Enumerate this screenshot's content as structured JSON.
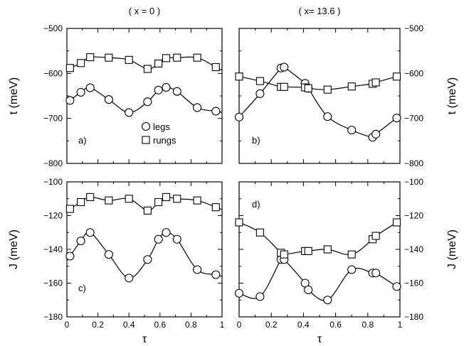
{
  "chart_data": {
    "type": "scatter",
    "column_titles": [
      "( x = 0 )",
      "( x= 13.6 )"
    ],
    "legend": {
      "legs": "legs",
      "rungs": "rungs"
    },
    "x_axis_label": "τ",
    "x_ticks": [
      "0",
      "0.2",
      "0.4",
      "0.6",
      "0.8",
      "1"
    ],
    "xlim": [
      0,
      1
    ],
    "rows": [
      {
        "ylabel": "t  (meV)",
        "ylim": [
          -800,
          -500
        ],
        "y_ticks": [
          {
            "v": -500,
            "label": "-500"
          },
          {
            "v": -600,
            "label": "-600"
          },
          {
            "v": -700,
            "label": "-700"
          },
          {
            "v": -800,
            "label": "-800"
          }
        ]
      },
      {
        "ylabel": "J  (meV)",
        "ylim": [
          -180,
          -100
        ],
        "y_ticks": [
          {
            "v": -100,
            "label": "-100"
          },
          {
            "v": -120,
            "label": "-120"
          },
          {
            "v": -140,
            "label": "-140"
          },
          {
            "v": -160,
            "label": "-160"
          },
          {
            "v": -180,
            "label": "-180"
          }
        ]
      }
    ],
    "panels": [
      {
        "label": "a)",
        "row": 0,
        "col": 0,
        "series": [
          {
            "name": "legs",
            "marker": "circle",
            "x": [
              0.02,
              0.09,
              0.15,
              0.27,
              0.4,
              0.52,
              0.59,
              0.64,
              0.71,
              0.84,
              0.96
            ],
            "y": [
              -660,
              -642,
              -632,
              -658,
              -687,
              -663,
              -637,
              -631,
              -640,
              -676,
              -684
            ]
          },
          {
            "name": "rungs",
            "marker": "square",
            "x": [
              0.02,
              0.09,
              0.15,
              0.27,
              0.4,
              0.52,
              0.59,
              0.64,
              0.71,
              0.84,
              0.96
            ],
            "y": [
              -588,
              -577,
              -564,
              -565,
              -570,
              -590,
              -578,
              -566,
              -565,
              -565,
              -586
            ]
          }
        ]
      },
      {
        "label": "b)",
        "row": 0,
        "col": 1,
        "series": [
          {
            "name": "legs",
            "marker": "circle",
            "x": [
              0.0,
              0.13,
              0.26,
              0.28,
              0.41,
              0.43,
              0.55,
              0.7,
              0.83,
              0.85,
              0.98
            ],
            "y": [
              -697,
              -645,
              -588,
              -586,
              -622,
              -633,
              -696,
              -726,
              -742,
              -735,
              -699
            ]
          },
          {
            "name": "rungs",
            "marker": "square",
            "x": [
              0.0,
              0.13,
              0.26,
              0.28,
              0.41,
              0.43,
              0.55,
              0.7,
              0.83,
              0.85,
              0.98
            ],
            "y": [
              -607,
              -617,
              -630,
              -630,
              -631,
              -633,
              -636,
              -629,
              -623,
              -620,
              -607
            ]
          }
        ]
      },
      {
        "label": "c)",
        "row": 1,
        "col": 0,
        "series": [
          {
            "name": "legs",
            "marker": "circle",
            "x": [
              0.02,
              0.09,
              0.15,
              0.27,
              0.4,
              0.52,
              0.59,
              0.64,
              0.71,
              0.84,
              0.96
            ],
            "y": [
              -144,
              -135,
              -130,
              -143,
              -157,
              -146,
              -134,
              -130,
              -134,
              -152,
              -155
            ]
          },
          {
            "name": "rungs",
            "marker": "square",
            "x": [
              0.02,
              0.09,
              0.15,
              0.27,
              0.4,
              0.52,
              0.59,
              0.64,
              0.71,
              0.84,
              0.96
            ],
            "y": [
              -116,
              -112,
              -109,
              -111,
              -110,
              -117,
              -112,
              -109,
              -110,
              -111,
              -115
            ]
          }
        ]
      },
      {
        "label": "d)",
        "row": 1,
        "col": 1,
        "series": [
          {
            "name": "legs",
            "marker": "circle",
            "x": [
              0.0,
              0.13,
              0.26,
              0.28,
              0.41,
              0.43,
              0.55,
              0.7,
              0.83,
              0.85,
              0.98
            ],
            "y": [
              -166,
              -168,
              -146,
              -146,
              -160,
              -164,
              -170,
              -152,
              -154,
              -154,
              -162
            ]
          },
          {
            "name": "rungs",
            "marker": "square",
            "x": [
              0.0,
              0.13,
              0.26,
              0.28,
              0.41,
              0.43,
              0.55,
              0.7,
              0.83,
              0.85,
              0.98
            ],
            "y": [
              -124,
              -130,
              -142,
              -143,
              -141,
              -141,
              -140,
              -143,
              -134,
              -132,
              -124
            ]
          }
        ]
      }
    ]
  }
}
